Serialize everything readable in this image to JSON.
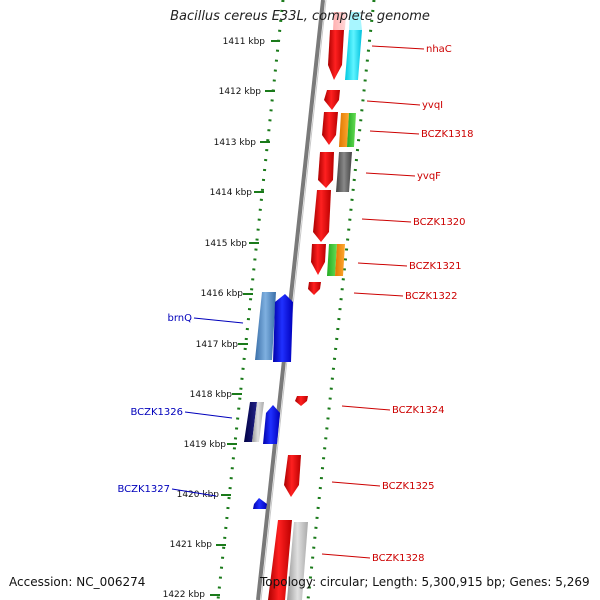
{
  "title": "Bacillus cereus E33L, complete genome",
  "footer": {
    "accession": "Accession: NC_006274",
    "summary": "Topology: circular; Length: 5,300,915 bp; Genes: 5,269"
  },
  "scale_labels": [
    "1411 kbp",
    "1412 kbp",
    "1413 kbp",
    "1414 kbp",
    "1415 kbp",
    "1416 kbp",
    "1417 kbp",
    "1418 kbp",
    "1419 kbp",
    "1420 kbp",
    "1421 kbp",
    "1422 kbp"
  ],
  "forward_gene_labels": [
    "nhaC",
    "yvqI",
    "BCZK1318",
    "yvqF",
    "BCZK1320",
    "BCZK1321",
    "BCZK1322",
    "BCZK1324",
    "BCZK1325",
    "BCZK1328"
  ],
  "reverse_gene_labels": [
    "brnQ",
    "BCZK1326",
    "BCZK1327"
  ],
  "colors": {
    "forward": "#ee0000",
    "reverse": "#0000ee",
    "label_forward": "#cc0000",
    "label_reverse": "#0000bb",
    "backbone": "#777777",
    "tick": "#1a7a1a"
  }
}
